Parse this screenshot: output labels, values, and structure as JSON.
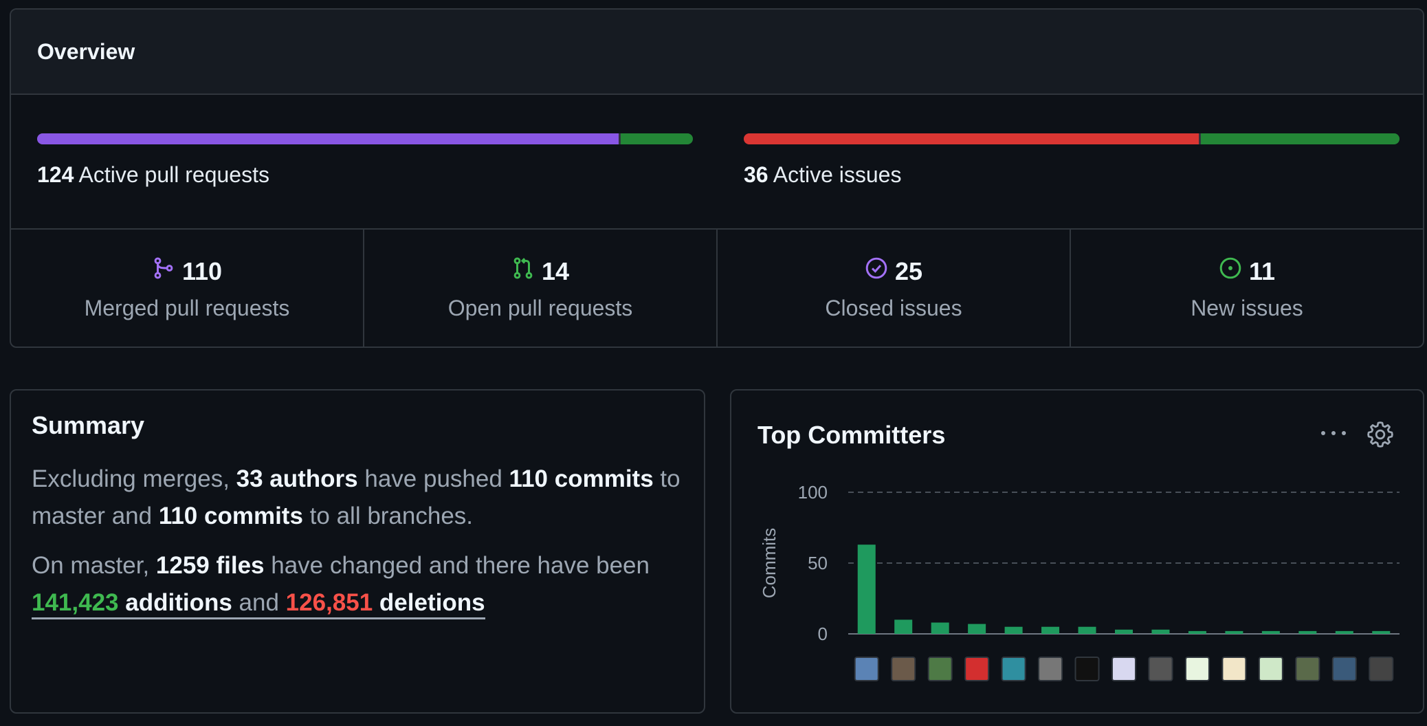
{
  "overview": {
    "title": "Overview",
    "pull_requests": {
      "count": "124",
      "label": "Active pull requests",
      "merged_fraction": 0.887,
      "open_fraction": 0.113,
      "merged_color": "#8957e5",
      "open_color": "#238636"
    },
    "issues": {
      "count": "36",
      "label": "Active issues",
      "closed_fraction": 0.694,
      "new_fraction": 0.306,
      "closed_color": "#da3633",
      "new_color": "#238636"
    },
    "stats": [
      {
        "icon": "merge-icon",
        "value": "110",
        "label": "Merged pull requests",
        "color": "#a371f7"
      },
      {
        "icon": "pull-request-icon",
        "value": "14",
        "label": "Open pull requests",
        "color": "#3fb950"
      },
      {
        "icon": "check-circle-icon",
        "value": "25",
        "label": "Closed issues",
        "color": "#a371f7"
      },
      {
        "icon": "issue-opened-icon",
        "value": "11",
        "label": "New issues",
        "color": "#3fb950"
      }
    ]
  },
  "summary": {
    "title": "Summary",
    "p1": {
      "t1": "Excluding merges, ",
      "authors": "33 authors",
      "t2": " have pushed ",
      "commits_master": "110 commits",
      "t3": " to master and ",
      "commits_all": "110 commits",
      "t4": " to all branches."
    },
    "p2": {
      "t1": "On master, ",
      "files": "1259 files",
      "t2": " have changed and there have been ",
      "additions_num": "141,423",
      "additions_word": " additions",
      "t3": " and ",
      "deletions_num": "126,851",
      "deletions_word": " deletions"
    }
  },
  "top_committers": {
    "title": "Top Committers",
    "more_icon": "kebab-horizontal-icon",
    "settings_icon": "gear-icon"
  },
  "chart_data": {
    "type": "bar",
    "ylabel": "Commits",
    "xlabel": "",
    "ylim": [
      0,
      100
    ],
    "yticks": [
      "100",
      "50",
      "0"
    ],
    "grid": true,
    "bar_color": "#1f9a5e",
    "avatar_colors": [
      "#5b83b5",
      "#6b5a4a",
      "#4e7a46",
      "#d32f2f",
      "#2f8fa0",
      "#777777",
      "#111111",
      "#d8d8f0",
      "#555555",
      "#e8f5e0",
      "#f2e6c8",
      "#cfe8c8",
      "#5a6a4a",
      "#3a5a7a",
      "#444444"
    ],
    "values": [
      63,
      10,
      8,
      7,
      5,
      5,
      5,
      3,
      3,
      2,
      2,
      2,
      2,
      2,
      2
    ]
  }
}
